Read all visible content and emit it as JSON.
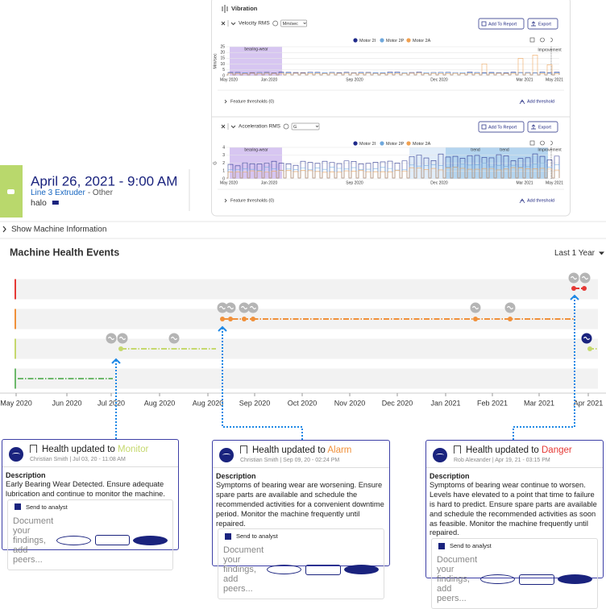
{
  "vibration": {
    "title": "Vibration",
    "legend": [
      {
        "name": "Motor 2I",
        "color": "#1f2a8a"
      },
      {
        "name": "Motor 2P",
        "color": "#6fa8dc"
      },
      {
        "name": "Motor 2A",
        "color": "#f0a050"
      }
    ],
    "panels": [
      {
        "metric": "Velocity RMS",
        "unit": "Mm/sec",
        "add_report": "Add To Report",
        "export": "Export",
        "y_label": "Mm/sec",
        "yticks": [
          25,
          20,
          15,
          10,
          5,
          0
        ],
        "xticks": [
          "May 2020",
          "Jan 2020",
          "Sep 2020",
          "Dec 2020",
          "Mar 2021",
          "May 2021"
        ],
        "annotations": [
          "bearing-wear",
          "Improvement"
        ],
        "thresholds": "Feature thresholds (0)",
        "add_threshold": "Add threshold"
      },
      {
        "metric": "Acceleration RMS",
        "unit": "G",
        "add_report": "Add To Report",
        "export": "Export",
        "y_label": "G",
        "yticks": [
          4,
          3,
          2,
          1,
          0
        ],
        "xticks": [
          "May 2020",
          "Jan 2020",
          "Sep 2020",
          "Dec 2020",
          "Mar 2021",
          "May 2021"
        ],
        "annotations": [
          "bearing-wear",
          "trend",
          "trend",
          "Improvement"
        ],
        "thresholds": "Feature thresholds (0)",
        "add_threshold": "Add threshold"
      }
    ]
  },
  "event": {
    "date": "April 26, 2021 - 9:00 AM",
    "machine": "Line 3 Extruder",
    "type": "- Other",
    "user": "halo"
  },
  "show_machine": "Show Machine Information",
  "health": {
    "title": "Machine Health Events",
    "range": "Last 1 Year",
    "xticks": [
      "May 2020",
      "Jun 2020",
      "Jul 2020",
      "Aug 2020",
      "Aug 2020",
      "Sep 2020",
      "Oct 2020",
      "Nov 2020",
      "Dec 2020",
      "Jan 2021",
      "Feb 2021",
      "Mar 2021",
      "Apr 2021"
    ]
  },
  "cards": [
    {
      "heading": "Health updated to",
      "status": "Monitor",
      "status_color": "#c5d86d",
      "meta": "Christian Smith | Jul 03, 20 - 11:08 AM",
      "desc_label": "Description",
      "desc": "Early Bearing Wear Detected. Ensure adequate lubrication and continue to monitor the machine.",
      "send": "Send to analyst",
      "placeholder": "Document your findings, add peers..."
    },
    {
      "heading": "Health updated to",
      "status": "Alarm",
      "status_color": "#f0903a",
      "meta": "Christian Smith | Sep 09, 20 - 02:24 PM",
      "desc_label": "Description",
      "desc": "Symptoms of bearing wear are worsening. Ensure spare parts are available and schedule the recommended activities for a convenient downtime period. Monitor the machine frequently until repaired.",
      "send": "Send to analyst",
      "placeholder": "Document your findings, add peers..."
    },
    {
      "heading": "Health updated to",
      "status": "Danger",
      "status_color": "#e53935",
      "meta": "Rob Alexander | Apr 19, 21 - 03:15 PM",
      "desc_label": "Description",
      "desc": "Symptoms of bearing wear continue to worsen. Levels have elevated to a point that time to failure is hard to predict. Ensure spare parts are available and schedule the recommended activities as soon as feasible. Monitor the machine frequently until repaired.",
      "send": "Send to analyst",
      "placeholder": "Document your findings, add peers..."
    }
  ]
}
